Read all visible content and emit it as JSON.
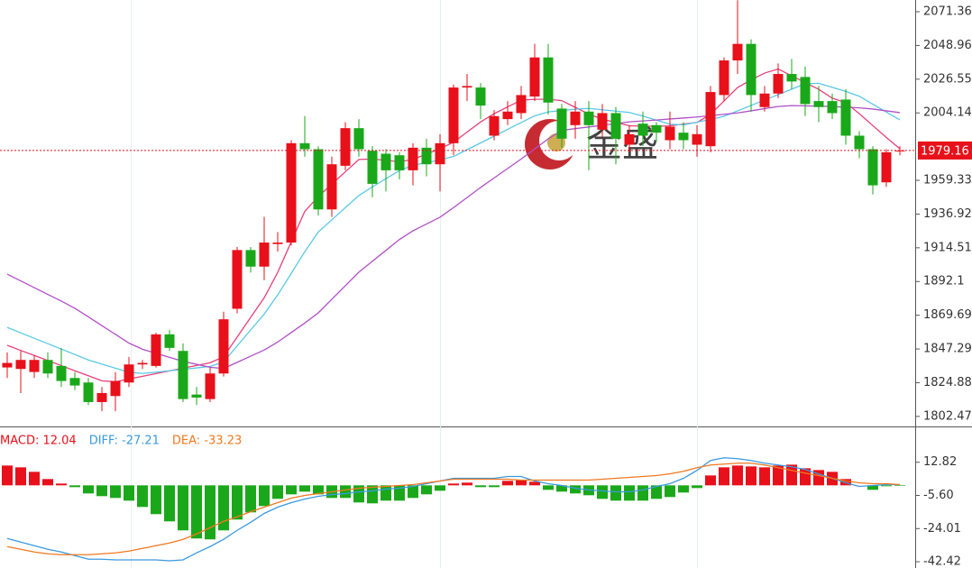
{
  "chart_data": [
    {
      "type": "candlestick",
      "color_up": "#e8101a",
      "color_down": "#1aa81a",
      "ylim": [
        1795.8,
        2079.15
      ],
      "yticks": [
        2071.36,
        2048.96,
        2026.55,
        2004.14,
        1959.33,
        1936.92,
        1914.51,
        1892.1,
        1869.69,
        1847.29,
        1824.88,
        1802.47
      ],
      "last_price": 1979.16,
      "last_price_color": "#e8101a",
      "watermark": "金盛",
      "open": [
        1835,
        1834,
        1832,
        1840,
        1836,
        1828,
        1825,
        1812,
        1816,
        1825,
        1837,
        1836,
        1857,
        1846,
        1817,
        1814,
        1831,
        1874,
        1913,
        1902,
        1917,
        1918,
        1984,
        1980,
        1940,
        1969,
        1994,
        1979,
        1977,
        1976,
        1966,
        1981,
        1970,
        1984,
        2021,
        2021,
        1989,
        2000,
        2004,
        2015,
        2041,
        2007,
        1996,
        2005,
        1993,
        2004,
        1983,
        1997,
        1996,
        1986,
        1991,
        1983,
        1982,
        2016,
        2039,
        2050,
        2008,
        2017,
        2030,
        2028,
        2012,
        2012,
        2013,
        1989,
        1980,
        1958,
        1979
      ],
      "close": [
        1838,
        1840,
        1840,
        1831,
        1826,
        1823,
        1812,
        1818,
        1826,
        1837,
        1838,
        1857,
        1848,
        1814,
        1815,
        1831,
        1867,
        1913,
        1902,
        1918,
        1918,
        1984,
        1980,
        1940,
        1970,
        1994,
        1980,
        1957,
        1966,
        1966,
        1981,
        1970,
        1984,
        2021,
        2022,
        2009,
        2002,
        2005,
        2016,
        2041,
        2011,
        1987,
        2005,
        1996,
        2004,
        1987,
        1990,
        1989,
        1991,
        1995,
        1986,
        1990,
        2018,
        2039,
        2050,
        2016,
        2017,
        2030,
        2025,
        2010,
        2008,
        2004,
        1989,
        1980,
        1956,
        1978,
        1979.16
      ],
      "high": [
        1845,
        1846,
        1843,
        1845,
        1848,
        1832,
        1828,
        1822,
        1832,
        1842,
        1840,
        1858,
        1860,
        1851,
        1822,
        1835,
        1872,
        1915,
        1915,
        1935,
        1925,
        1986,
        2002,
        1982,
        1975,
        1998,
        2000,
        1982,
        1980,
        1978,
        1984,
        1987,
        1990,
        2023,
        2030,
        2024,
        2006,
        2012,
        2022,
        2050,
        2050,
        2010,
        2012,
        2012,
        2010,
        2008,
        1996,
        2005,
        1998,
        2005,
        1998,
        1996,
        2022,
        2041,
        2079,
        2053,
        2022,
        2037,
        2040,
        2035,
        2022,
        2017,
        2020,
        1992,
        1982,
        1980,
        1982
      ],
      "low": [
        1828,
        1818,
        1828,
        1828,
        1822,
        1820,
        1810,
        1806,
        1806,
        1822,
        1834,
        1835,
        1846,
        1812,
        1810,
        1812,
        1829,
        1871,
        1898,
        1893,
        1912,
        1916,
        1975,
        1936,
        1935,
        1966,
        1975,
        1948,
        1952,
        1960,
        1956,
        1962,
        1952,
        1976,
        2012,
        2000,
        1986,
        1996,
        2000,
        2012,
        2003,
        1981,
        1987,
        1966,
        1988,
        1970,
        1978,
        1982,
        1985,
        1980,
        1980,
        1975,
        1978,
        2012,
        2030,
        2005,
        2005,
        2014,
        2020,
        2002,
        1998,
        2000,
        1983,
        1974,
        1950,
        1955,
        1976
      ],
      "moving_averages": [
        {
          "color": "#e8407a",
          "values": [
            1849.7,
            1846.3,
            1843.0,
            1839.6,
            1836.2,
            1832.8,
            1829.5,
            1826.1,
            1825.5,
            1827.3,
            1829.1,
            1830.9,
            1832.7,
            1834.5,
            1836.3,
            1838.1,
            1842.1,
            1855.2,
            1868.3,
            1881.3,
            1898.2,
            1918.5,
            1938.7,
            1948.5,
            1956.9,
            1965.0,
            1973.2,
            1973.5,
            1972.6,
            1971.7,
            1973.2,
            1976.8,
            1980.4,
            1984.6,
            1991.4,
            1998.1,
            2003.6,
            2008.1,
            2012.6,
            2013.2,
            2013.2,
            2012.3,
            2007.8,
            2003.3,
            2000.0,
            1997.8,
            1995.6,
            1995.3,
            1995.3,
            1995.5,
            1996.7,
            1997.8,
            2003.1,
            2012.1,
            2021.0,
            2026.1,
            2030.6,
            2033.3,
            2028.8,
            2024.3,
            2019.8,
            2013.9,
            2010.9,
            2003.6,
            1995.7,
            1987.8,
            1980.3
          ]
        },
        {
          "color": "#5ac8e8",
          "values": [
            1861.6,
            1858.0,
            1854.4,
            1850.8,
            1847.2,
            1843.6,
            1840.0,
            1837.2,
            1834.5,
            1831.8,
            1831.0,
            1831.9,
            1832.8,
            1833.7,
            1834.7,
            1835.7,
            1838.6,
            1849.3,
            1859.9,
            1870.5,
            1883.2,
            1897.5,
            1911.9,
            1925.0,
            1933.1,
            1941.2,
            1949.2,
            1955.0,
            1960.4,
            1965.8,
            1969.3,
            1971.1,
            1972.9,
            1975.2,
            1979.7,
            1984.2,
            1988.7,
            1993.2,
            1997.7,
            2002.2,
            2004.8,
            2005.7,
            2006.6,
            2007.1,
            2006.2,
            2005.3,
            2004.4,
            2002.0,
            1999.3,
            1996.6,
            1996.2,
            1998.0,
            1999.8,
            2001.9,
            2005.5,
            2009.1,
            2012.7,
            2016.3,
            2019.9,
            2023.5,
            2023.8,
            2021.1,
            2018.4,
            2015.2,
            2009.9,
            2004.7,
            1999.5
          ]
        },
        {
          "color": "#b050c8",
          "values": [
            1897.0,
            1892.5,
            1888.0,
            1883.5,
            1879.1,
            1874.3,
            1868.6,
            1862.8,
            1857.0,
            1851.2,
            1847.1,
            1844.4,
            1841.7,
            1839.1,
            1837.1,
            1835.1,
            1834.3,
            1838.4,
            1842.5,
            1846.6,
            1851.9,
            1858.2,
            1864.5,
            1871.3,
            1880.3,
            1889.3,
            1898.3,
            1905.6,
            1912.8,
            1920.0,
            1925.8,
            1930.3,
            1934.8,
            1941.2,
            1947.9,
            1954.6,
            1960.9,
            1967.2,
            1973.5,
            1980.2,
            1986.9,
            1992.5,
            1993.7,
            1994.8,
            1995.9,
            1997.0,
            1998.2,
            1998.8,
            1999.4,
            2000.1,
            2000.7,
            2001.4,
            2002.3,
            2003.2,
            2004.1,
            2005.5,
            2007.0,
            2008.4,
            2009.0,
            2008.8,
            2008.6,
            2008.4,
            2007.9,
            2007.5,
            2006.7,
            2005.5,
            2004.3
          ]
        }
      ]
    },
    {
      "type": "macd",
      "ylim": [
        -45.9,
        31.2
      ],
      "yticks": [
        12.82,
        {
          "value": -5.6,
          "label": "-5.60"
        },
        -24.01,
        -42.42
      ],
      "series": [
        {
          "label": "MACD: 12.04",
          "color": "#e8101a",
          "color_down": "#1aa81a",
          "values": [
            11,
            10,
            7.5,
            3.5,
            1,
            -1,
            -4.5,
            -6,
            -7,
            -8.5,
            -12,
            -16,
            -20,
            -25,
            -29.5,
            -30,
            -25,
            -19,
            -15,
            -11.5,
            -7.5,
            -5,
            -3.5,
            -5,
            -7,
            -7,
            -9.5,
            -10,
            -8.5,
            -8.5,
            -7,
            -5,
            -3,
            1,
            1.5,
            -1,
            -1,
            2.5,
            3,
            2,
            -2.5,
            -3.5,
            -4.5,
            -5.5,
            -7.5,
            -8.5,
            -8.5,
            -8.5,
            -7.5,
            -6.5,
            -4,
            -1.5,
            5.5,
            10,
            11,
            10.5,
            10,
            11,
            11.5,
            9.5,
            8.5,
            7.5,
            3.5,
            0,
            -2.5,
            -0.5,
            -0.3
          ]
        },
        {
          "label": "DIFF: -27.21",
          "color": "#3a9ae0",
          "values": [
            -29.5,
            -31.5,
            -33.5,
            -35.5,
            -37,
            -39,
            -41,
            -41,
            -41.4,
            -41.4,
            -41.4,
            -41.4,
            -41.9,
            -41.4,
            -37.5,
            -34,
            -30,
            -25,
            -20.5,
            -15.6,
            -12.1,
            -9.6,
            -7.6,
            -6.1,
            -5.1,
            -4.6,
            -3.6,
            -3.1,
            -2.1,
            -1.6,
            -0.6,
            0.9,
            2.4,
            3.9,
            3.9,
            3.9,
            3.9,
            4.9,
            4.9,
            2.4,
            0.9,
            -0.1,
            -1.6,
            -2.6,
            -3.1,
            -3.6,
            -3.6,
            -2.6,
            -0.6,
            0.9,
            3.9,
            8.3,
            13.8,
            15.3,
            14.8,
            13.8,
            12.3,
            11.3,
            10.3,
            8.8,
            6.3,
            3.9,
            1.4,
            -0.6,
            -0.1,
            0.4,
            0.4
          ]
        },
        {
          "label": "DEA: -33.23",
          "color": "#f07820",
          "values": [
            -34,
            -35.5,
            -37,
            -38,
            -38.5,
            -38.5,
            -38.5,
            -38,
            -37.5,
            -36.5,
            -35,
            -33.5,
            -32,
            -30,
            -27,
            -23.5,
            -20,
            -17.5,
            -14.6,
            -12.1,
            -9.6,
            -7.1,
            -5.6,
            -4.6,
            -3.6,
            -2.6,
            -1.6,
            -1.1,
            -0.6,
            -0.1,
            0.4,
            1.4,
            2.4,
            3.4,
            3.4,
            3.4,
            3.4,
            3.4,
            2.9,
            2.9,
            2.9,
            2.9,
            2.9,
            2.9,
            3.4,
            3.9,
            4.4,
            4.9,
            5.4,
            6.4,
            7.8,
            9.8,
            11.3,
            11.8,
            12.3,
            12.3,
            11.3,
            9.8,
            8.3,
            6.8,
            5.4,
            3.9,
            2.4,
            1.4,
            0.9,
            0.9,
            0.4
          ]
        }
      ]
    }
  ]
}
